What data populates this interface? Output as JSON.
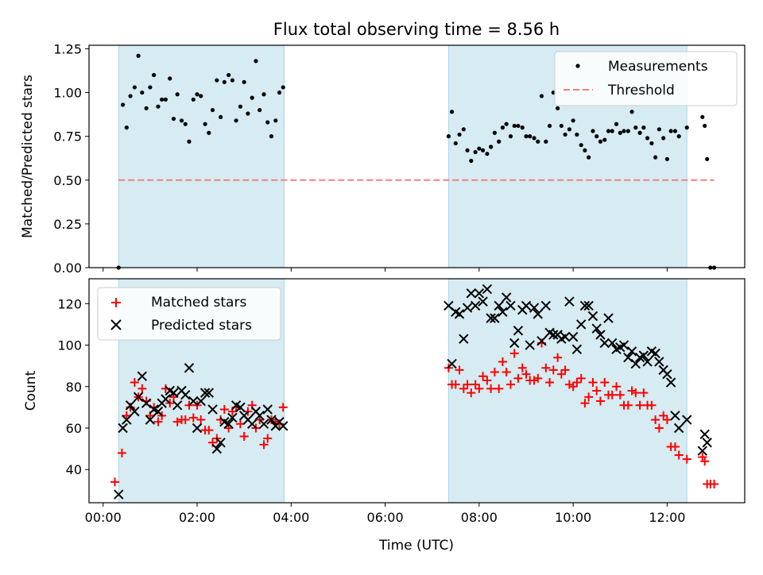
{
  "chart_data": {
    "title": "Flux total observing time = 8.56 h",
    "xlabel": "Time (UTC)",
    "xlim": [
      -0.3,
      13.65
    ],
    "x_ticks": [
      0,
      2,
      4,
      6,
      8,
      10,
      12
    ],
    "x_tick_labels": [
      "00:00",
      "02:00",
      "04:00",
      "06:00",
      "08:00",
      "10:00",
      "12:00"
    ],
    "shaded_intervals": [
      [
        0.33,
        3.85
      ],
      [
        7.35,
        12.42
      ]
    ],
    "shade_color": "#add8e6",
    "panels": [
      {
        "type": "scatter",
        "ylabel": "Matched/Predicted stars",
        "ylim": [
          0.0,
          1.27
        ],
        "y_ticks": [
          0.0,
          0.25,
          0.5,
          0.75,
          1.0,
          1.25
        ],
        "y_tick_labels": [
          "0.00",
          "0.25",
          "0.50",
          "0.75",
          "1.00",
          "1.25"
        ],
        "legend": {
          "position": "upper right",
          "entries": [
            "Measurements",
            "Threshold"
          ]
        },
        "threshold": {
          "name": "Threshold",
          "y": 0.5,
          "x": [
            0.33,
            13.0
          ],
          "color": "#f08080"
        },
        "series": [
          {
            "name": "Measurements",
            "color": "#000000",
            "x": [
              0.33,
              0.42,
              0.5,
              0.58,
              0.67,
              0.75,
              0.83,
              0.92,
              1.0,
              1.08,
              1.17,
              1.25,
              1.33,
              1.42,
              1.5,
              1.58,
              1.67,
              1.75,
              1.83,
              1.92,
              2.0,
              2.08,
              2.17,
              2.25,
              2.33,
              2.42,
              2.5,
              2.58,
              2.67,
              2.75,
              2.83,
              2.92,
              3.0,
              3.08,
              3.17,
              3.25,
              3.33,
              3.42,
              3.5,
              3.58,
              3.67,
              3.75,
              3.83,
              7.35,
              7.42,
              7.5,
              7.58,
              7.67,
              7.75,
              7.83,
              7.92,
              8.0,
              8.08,
              8.17,
              8.25,
              8.33,
              8.42,
              8.5,
              8.58,
              8.67,
              8.75,
              8.83,
              8.92,
              9.0,
              9.08,
              9.17,
              9.25,
              9.33,
              9.42,
              9.5,
              9.58,
              9.67,
              9.75,
              9.83,
              9.92,
              10.0,
              10.08,
              10.17,
              10.25,
              10.33,
              10.42,
              10.5,
              10.58,
              10.67,
              10.75,
              10.83,
              10.92,
              11.0,
              11.08,
              11.17,
              11.25,
              11.33,
              11.42,
              11.5,
              11.58,
              11.67,
              11.75,
              11.83,
              11.92,
              12.0,
              12.08,
              12.17,
              12.25,
              12.42,
              12.75,
              12.8,
              12.85,
              12.92,
              13.0
            ],
            "y": [
              0.0,
              0.93,
              0.8,
              0.98,
              1.03,
              1.21,
              1.0,
              0.91,
              1.03,
              1.1,
              0.92,
              0.96,
              0.96,
              1.08,
              0.85,
              0.99,
              0.84,
              0.82,
              0.72,
              0.96,
              0.99,
              0.98,
              0.82,
              0.77,
              0.9,
              1.07,
              0.86,
              1.06,
              1.1,
              1.07,
              0.84,
              0.92,
              1.06,
              0.88,
              0.97,
              1.18,
              0.9,
              0.99,
              0.83,
              0.75,
              0.84,
              1.0,
              1.03,
              0.75,
              0.89,
              0.71,
              0.76,
              0.79,
              0.67,
              0.61,
              0.66,
              0.68,
              0.67,
              0.65,
              0.69,
              0.77,
              0.72,
              0.8,
              0.82,
              0.75,
              0.81,
              0.81,
              0.8,
              0.75,
              0.75,
              0.74,
              0.72,
              0.98,
              0.72,
              0.81,
              1.0,
              0.91,
              0.81,
              0.76,
              0.79,
              0.84,
              0.76,
              0.7,
              0.67,
              0.63,
              0.78,
              0.75,
              0.72,
              0.73,
              0.78,
              0.78,
              0.82,
              0.77,
              0.78,
              0.78,
              0.89,
              0.8,
              0.77,
              0.8,
              0.74,
              0.71,
              0.63,
              0.79,
              0.74,
              0.62,
              0.78,
              0.78,
              0.75,
              0.8,
              0.86,
              0.81,
              0.62,
              0.0,
              0.0
            ]
          }
        ]
      },
      {
        "type": "scatter",
        "ylabel": "Count",
        "ylim": [
          24,
          132
        ],
        "y_ticks": [
          40,
          60,
          80,
          100,
          120
        ],
        "y_tick_labels": [
          "40",
          "60",
          "80",
          "100",
          "120"
        ],
        "legend": {
          "position": "upper left",
          "entries": [
            "Matched stars",
            "Predicted stars"
          ]
        },
        "series": [
          {
            "name": "Matched stars",
            "marker": "plus",
            "color": "#ff0000",
            "x": [
              0.25,
              0.4,
              0.5,
              0.58,
              0.67,
              0.75,
              0.83,
              0.92,
              1.0,
              1.08,
              1.17,
              1.25,
              1.33,
              1.42,
              1.5,
              1.58,
              1.67,
              1.75,
              1.83,
              1.92,
              2.0,
              2.08,
              2.17,
              2.25,
              2.33,
              2.42,
              2.5,
              2.58,
              2.67,
              2.75,
              2.83,
              2.92,
              3.0,
              3.08,
              3.17,
              3.25,
              3.33,
              3.42,
              3.5,
              3.58,
              3.67,
              3.75,
              3.83,
              7.35,
              7.42,
              7.5,
              7.58,
              7.67,
              7.75,
              7.83,
              7.92,
              8.0,
              8.08,
              8.17,
              8.25,
              8.33,
              8.42,
              8.5,
              8.58,
              8.67,
              8.75,
              8.83,
              8.92,
              9.0,
              9.08,
              9.17,
              9.25,
              9.33,
              9.42,
              9.5,
              9.58,
              9.67,
              9.75,
              9.83,
              9.92,
              10.0,
              10.08,
              10.17,
              10.25,
              10.33,
              10.42,
              10.5,
              10.58,
              10.67,
              10.75,
              10.83,
              10.92,
              11.0,
              11.08,
              11.17,
              11.25,
              11.33,
              11.42,
              11.5,
              11.58,
              11.67,
              11.75,
              11.83,
              11.92,
              12.0,
              12.08,
              12.17,
              12.25,
              12.42,
              12.75,
              12.8,
              12.85,
              12.92,
              13.0
            ],
            "y": [
              34,
              48,
              66,
              70,
              82,
              75,
              79,
              73,
              66,
              70,
              63,
              66,
              79,
              72,
              75,
              63,
              64,
              64,
              71,
              65,
              71,
              64,
              59,
              59,
              53,
              55,
              64,
              69,
              60,
              68,
              70,
              62,
              56,
              68,
              71,
              60,
              64,
              52,
              55,
              64,
              63,
              62,
              70,
              89,
              81,
              81,
              88,
              79,
              81,
              77,
              81,
              79,
              85,
              83,
              79,
              87,
              79,
              92,
              87,
              81,
              96,
              84,
              89,
              86,
              83,
              83,
              84,
              101,
              89,
              82,
              88,
              94,
              86,
              88,
              81,
              80,
              82,
              84,
              72,
              75,
              82,
              78,
              73,
              82,
              76,
              76,
              80,
              76,
              71,
              71,
              78,
              77,
              71,
              77,
              71,
              71,
              64,
              60,
              66,
              64,
              51,
              51,
              47,
              45,
              46,
              44,
              33,
              33,
              33
            ]
          },
          {
            "name": "Predicted stars",
            "marker": "x",
            "color": "#000000",
            "x": [
              0.33,
              0.42,
              0.5,
              0.58,
              0.67,
              0.75,
              0.83,
              0.92,
              1.0,
              1.08,
              1.17,
              1.25,
              1.33,
              1.42,
              1.5,
              1.58,
              1.67,
              1.75,
              1.83,
              1.92,
              2.0,
              2.08,
              2.17,
              2.25,
              2.33,
              2.42,
              2.5,
              2.58,
              2.67,
              2.75,
              2.83,
              2.92,
              3.0,
              3.08,
              3.17,
              3.25,
              3.33,
              3.42,
              3.5,
              3.58,
              3.67,
              3.75,
              3.83,
              7.35,
              7.42,
              7.5,
              7.58,
              7.67,
              7.75,
              7.83,
              7.92,
              8.0,
              8.08,
              8.17,
              8.25,
              8.33,
              8.42,
              8.5,
              8.58,
              8.67,
              8.75,
              8.83,
              8.92,
              9.0,
              9.08,
              9.17,
              9.25,
              9.33,
              9.42,
              9.5,
              9.58,
              9.67,
              9.75,
              9.83,
              9.92,
              10.0,
              10.08,
              10.17,
              10.25,
              10.33,
              10.42,
              10.5,
              10.58,
              10.67,
              10.75,
              10.83,
              10.92,
              11.0,
              11.08,
              11.17,
              11.25,
              11.33,
              11.42,
              11.5,
              11.58,
              11.67,
              11.75,
              11.83,
              11.92,
              12.0,
              12.08,
              12.17,
              12.25,
              12.42,
              12.75,
              12.8,
              12.85,
              12.92,
              13.0
            ],
            "y": [
              28,
              60,
              64,
              71,
              68,
              75,
              85,
              72,
              64,
              69,
              68,
              72,
              74,
              78,
              77,
              71,
              78,
              76,
              89,
              73,
              60,
              73,
              77,
              77,
              69,
              50,
              53,
              63,
              62,
              65,
              71,
              70,
              66,
              64,
              62,
              68,
              66,
              62,
              69,
              64,
              61,
              63,
              61,
              119,
              91,
              116,
              115,
              103,
              118,
              125,
              119,
              125,
              121,
              127,
              113,
              113,
              119,
              116,
              123,
              119,
              101,
              107,
              117,
              119,
              100,
              118,
              115,
              102,
              119,
              106,
              105,
              105,
              103,
              104,
              121,
              104,
              98,
              110,
              119,
              119,
              114,
              108,
              105,
              101,
              113,
              101,
              98,
              99,
              100,
              94,
              97,
              91,
              94,
              95,
              92,
              97,
              96,
              92,
              88,
              86,
              82,
              66,
              60,
              64,
              49,
              57,
              53,
              null,
              null
            ]
          }
        ]
      }
    ]
  }
}
